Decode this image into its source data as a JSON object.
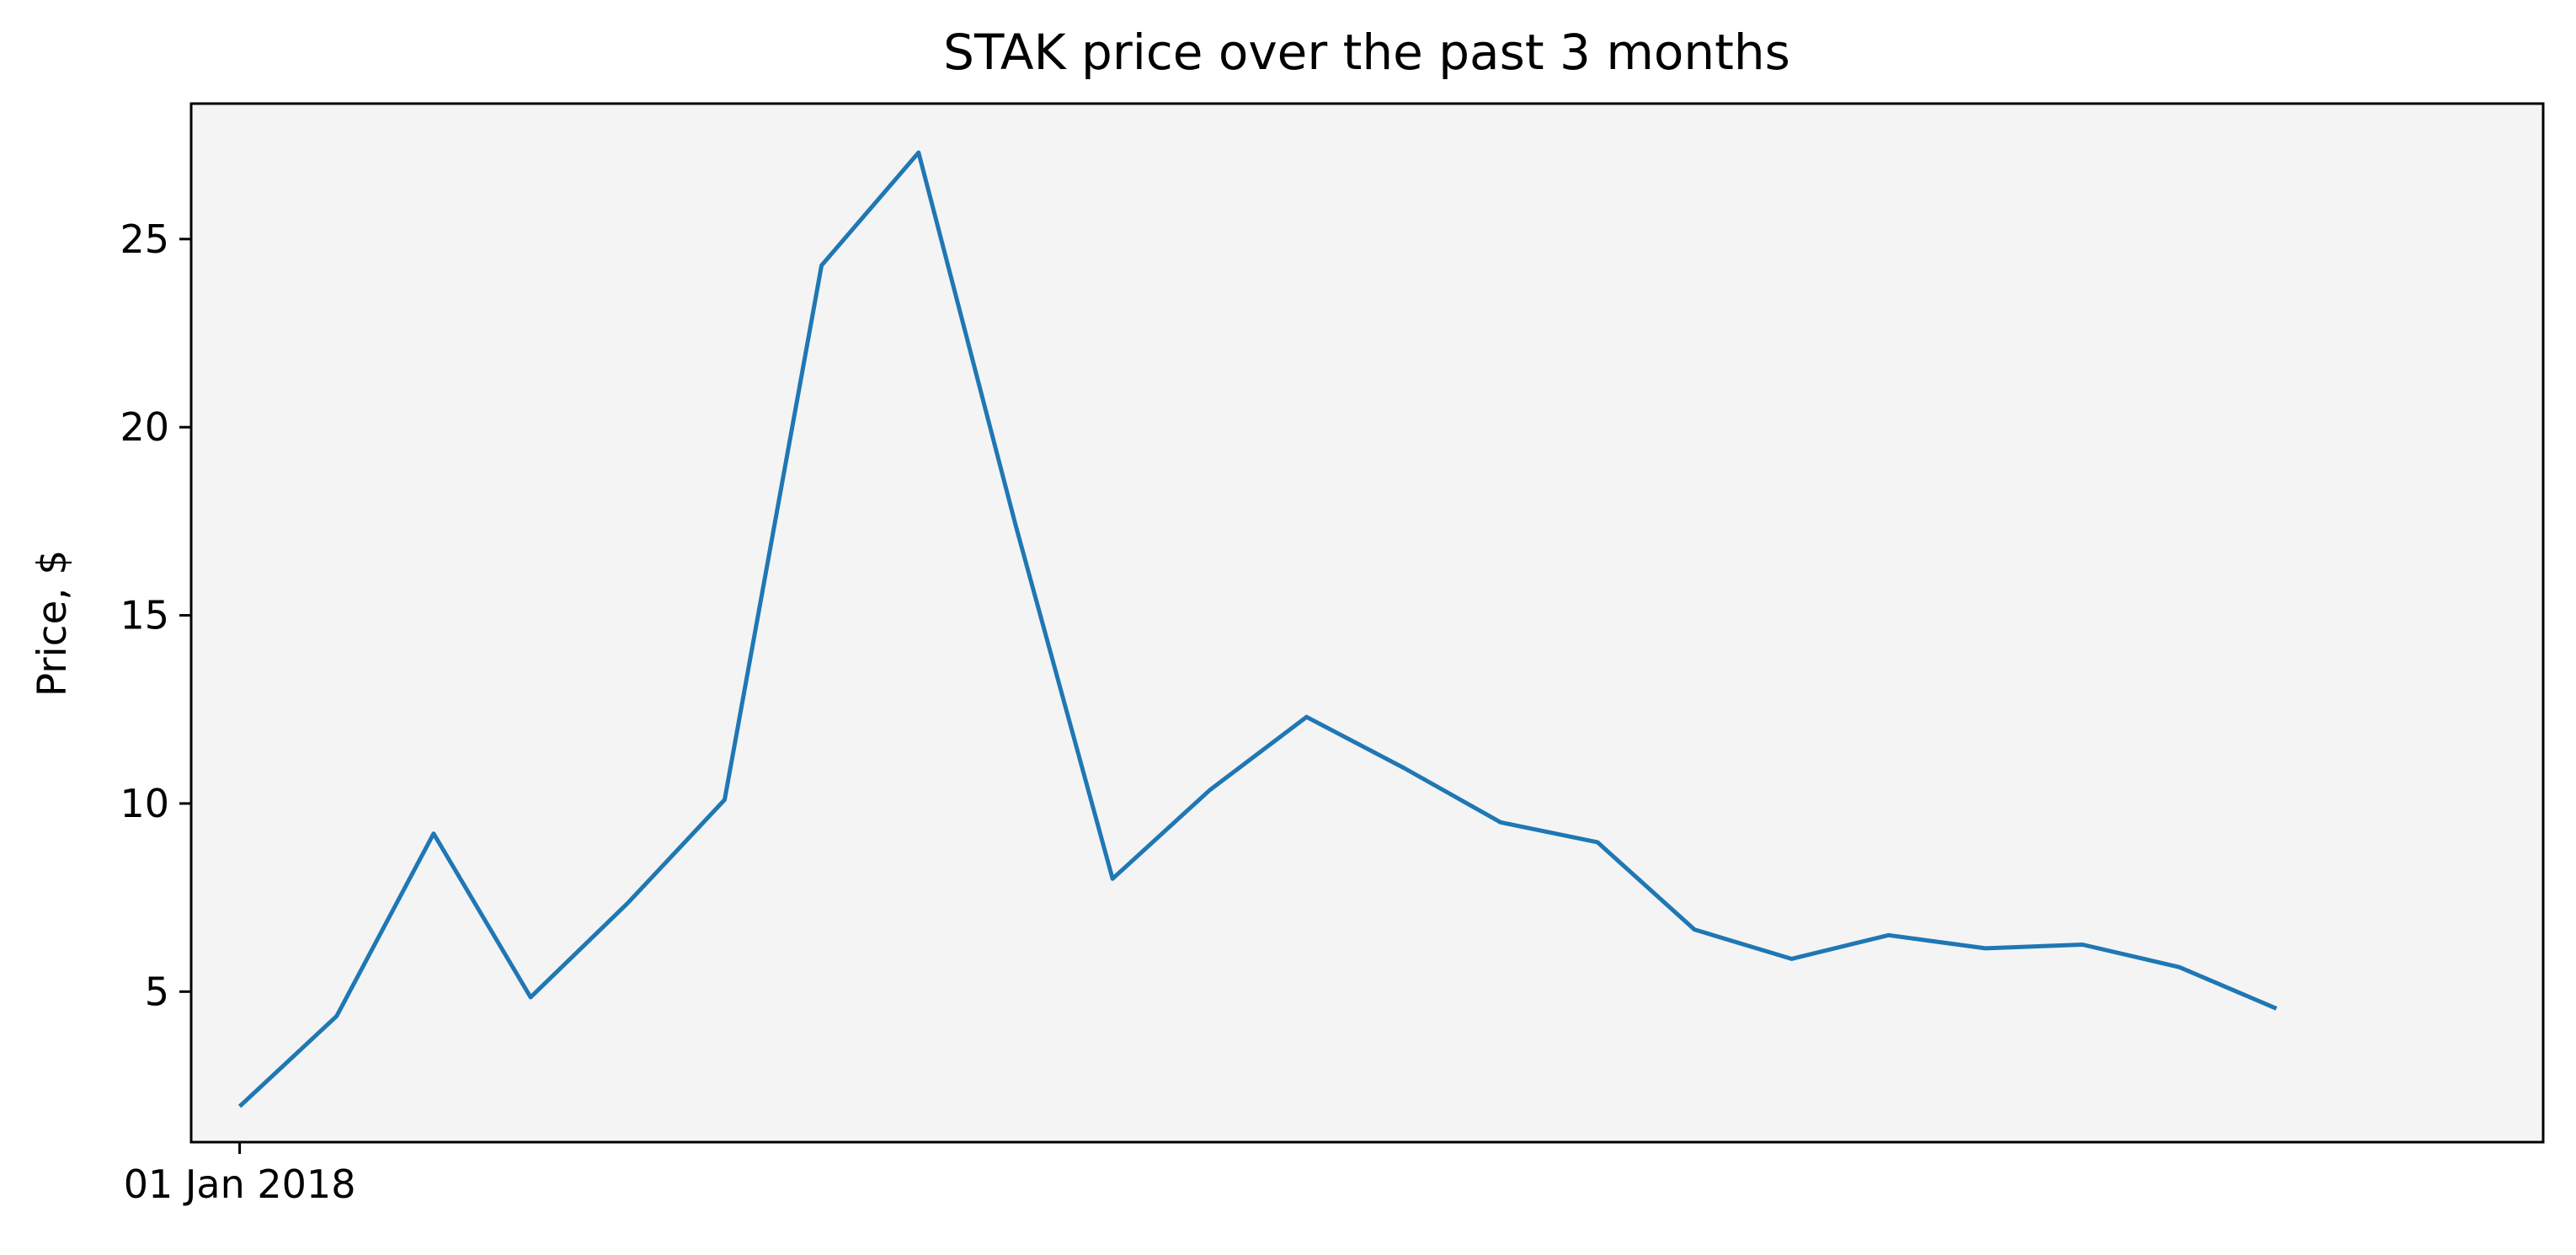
{
  "chart_data": {
    "type": "line",
    "title": "STAK price over the past 3 months",
    "xlabel": "",
    "ylabel": "Price, $",
    "x": [
      "2018-01-01",
      "2018-01-05",
      "2018-01-09",
      "2018-01-13",
      "2018-01-17",
      "2018-01-21",
      "2018-01-25",
      "2018-01-29",
      "2018-02-02",
      "2018-02-06",
      "2018-02-10",
      "2018-02-14",
      "2018-02-18",
      "2018-02-22",
      "2018-02-26",
      "2018-03-02",
      "2018-03-06",
      "2018-03-10",
      "2018-03-14",
      "2018-03-18",
      "2018-03-22",
      "2018-03-26"
    ],
    "series": [
      {
        "values": [
          1.95,
          4.35,
          9.2,
          4.85,
          7.35,
          10.1,
          24.3,
          27.3,
          17.4,
          8.0,
          10.35,
          12.3,
          10.95,
          9.5,
          8.97,
          6.65,
          5.87,
          6.5,
          6.15,
          6.25,
          5.65,
          4.55
        ]
      }
    ],
    "xticks": [
      {
        "value": "2018-01-01",
        "label": "01 Jan 2018"
      }
    ],
    "yticks": [
      5,
      10,
      15,
      20,
      25
    ],
    "ylim": [
      1.0,
      28.6
    ],
    "xlim": [
      "2017-12-30",
      "2018-04-06"
    ],
    "grid": false,
    "legend": "none",
    "colors": {
      "line": "#1f77b4",
      "plot_background": "#f4f4f4",
      "axes": "#000000"
    }
  }
}
